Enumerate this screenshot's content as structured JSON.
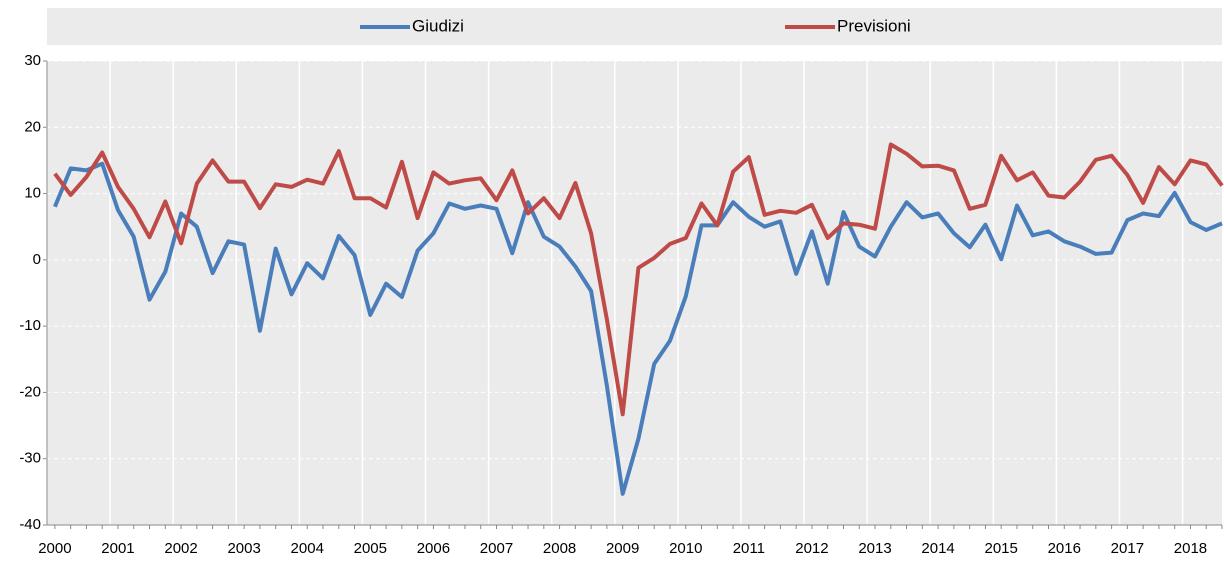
{
  "chart_data": {
    "type": "line",
    "categories": [
      "2000",
      null,
      null,
      null,
      "2001",
      null,
      null,
      null,
      "2002",
      null,
      null,
      null,
      "2003",
      null,
      null,
      null,
      "2004",
      null,
      null,
      null,
      "2005",
      null,
      null,
      null,
      "2006",
      null,
      null,
      null,
      "2007",
      null,
      null,
      null,
      "2008",
      null,
      null,
      null,
      "2009",
      null,
      null,
      null,
      "2010",
      null,
      null,
      null,
      "2011",
      null,
      null,
      null,
      "2012",
      null,
      null,
      null,
      "2013",
      null,
      null,
      null,
      "2014",
      null,
      null,
      null,
      "2015",
      null,
      null,
      null,
      "2016",
      null,
      null,
      null,
      "2017",
      null,
      null,
      null,
      "2018",
      null,
      null
    ],
    "series": [
      {
        "name": "Giudizi",
        "color": "#4a7ebb",
        "values": [
          8,
          13.8,
          13.5,
          14.5,
          7.5,
          3.5,
          -6,
          -1.8,
          7,
          5,
          -2,
          2.8,
          2.3,
          -10.7,
          1.7,
          -5.2,
          -0.5,
          -2.8,
          3.6,
          0.7,
          -8.3,
          -3.6,
          -5.6,
          1.4,
          4,
          8.5,
          7.7,
          8.2,
          7.7,
          1,
          8.7,
          3.5,
          2,
          -1,
          -4.7,
          -19,
          -35.3,
          -27,
          -15.7,
          -12.2,
          -5.5,
          5.2,
          5.2,
          8.7,
          6.5,
          5,
          5.8,
          -2.1,
          4.3,
          -3.6,
          7.2,
          2,
          0.5,
          5,
          8.7,
          6.4,
          7,
          4,
          1.9,
          5.3,
          0.1,
          8.2,
          3.7,
          4.3,
          2.8,
          2,
          0.9,
          1.1,
          6,
          7,
          6.6,
          10.1,
          5.7,
          4.5,
          5.5
        ]
      },
      {
        "name": "Previsioni",
        "color": "#be4b48",
        "values": [
          13,
          9.8,
          12.5,
          16.2,
          11,
          7.7,
          3.4,
          8.8,
          2.5,
          11.5,
          15,
          11.8,
          11.8,
          7.8,
          11.4,
          11,
          12.1,
          11.5,
          16.4,
          9.3,
          9.3,
          7.9,
          14.8,
          6.3,
          13.2,
          11.5,
          12,
          12.3,
          9,
          13.5,
          7,
          9.3,
          6.3,
          11.6,
          4,
          -9,
          -23.3,
          -1.2,
          0.3,
          2.4,
          3.3,
          8.5,
          5.2,
          13.3,
          15.5,
          6.8,
          7.4,
          7.1,
          8.3,
          3.3,
          5.5,
          5.3,
          4.7,
          17.4,
          16,
          14.1,
          14.2,
          13.5,
          7.7,
          8.3,
          15.7,
          12,
          13.2,
          9.7,
          9.4,
          11.8,
          15.1,
          15.7,
          12.8,
          8.6,
          14,
          11.4,
          15,
          14.4,
          11.2
        ]
      }
    ],
    "ylim": [
      -40,
      30
    ],
    "yticks": [
      -40,
      -30,
      -20,
      -10,
      0,
      10,
      20,
      30
    ],
    "grid": true
  }
}
